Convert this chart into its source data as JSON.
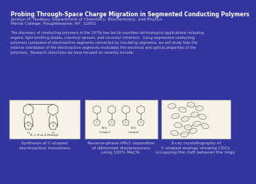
{
  "bg_color": "#3535a0",
  "title": "Probing Through-Space Charge Migration in Segmented Conducting Polymers",
  "author_line": "Jocelyn M. Nadeau, Department of Chemistry, Biochemistry, and Physics",
  "institution_line": "Marist College, Poughkeepsie, NY  12601",
  "body_text": "The discovery of conducting polymers in the 1970s has led to countless technological applications including\norganic light-emitting diodes, chemical sensors, and corrosion inhibitors.  Using segmented conducting\npolymers composed of electroactive segments connected by insulating segments, we will study how the\nrelative orientation of the electroactive segments modulates the electrical and optical properties of the\npolymers.  Research objectives we have focused on recently include:",
  "caption1": "Synthesis of C-shaped\nelectroactive monomers",
  "caption2": "Reverse-phase HPLC separation\nof dibromide diastereomers\nusing 100% MeCN.",
  "caption3": "X-ray crystallography of\nC-shaped analogs showing CDCl₃\noccupying the cleft between the rings.",
  "sub_caption1": "R = H or 2-thienyl",
  "text_color": "#ccccdd",
  "title_color": "#ffffff",
  "box_color": "#f5f2e8",
  "title_fontsize": 5.5,
  "author_fontsize": 4.2,
  "body_fontsize": 3.6,
  "caption_fontsize": 4.2,
  "sub_caption_fontsize": 3.2
}
